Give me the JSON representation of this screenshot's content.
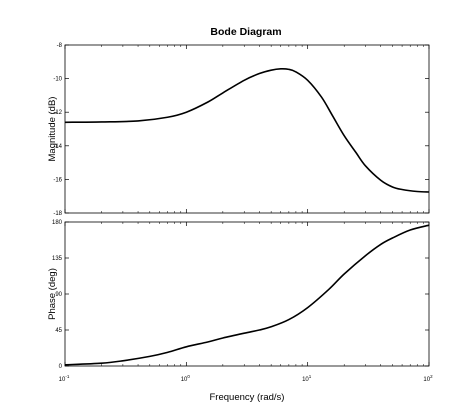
{
  "chart_data": [
    {
      "type": "line",
      "panel": "magnitude",
      "title": "Bode Diagram",
      "xlabel": "Frequency  (rad/s)",
      "ylabel": "Magnitude (dB)",
      "xscale": "log",
      "xlim": [
        0.1,
        100
      ],
      "ylim": [
        -18,
        -8
      ],
      "yticks": [
        -18,
        -16,
        -14,
        -12,
        -10,
        -8
      ],
      "ytick_labels": [
        "-18",
        "-16",
        "-14",
        "-12",
        "-10",
        "-8"
      ],
      "grid": false,
      "line_color": "#000000",
      "series": [
        {
          "x": [
            0.1,
            0.2,
            0.4,
            0.7,
            1.0,
            1.5,
            2.0,
            3.0,
            4.0,
            5.0,
            6.0,
            7.0,
            8.0,
            10,
            13,
            16,
            20,
            25,
            30,
            40,
            50,
            60,
            80,
            100
          ],
          "values": [
            -12.6,
            -12.58,
            -12.52,
            -12.3,
            -12.0,
            -11.4,
            -10.85,
            -10.1,
            -9.7,
            -9.5,
            -9.42,
            -9.45,
            -9.6,
            -10.1,
            -11.1,
            -12.2,
            -13.4,
            -14.4,
            -15.2,
            -16.05,
            -16.45,
            -16.6,
            -16.72,
            -16.75
          ]
        }
      ]
    },
    {
      "type": "line",
      "panel": "phase",
      "xlabel": "Frequency  (rad/s)",
      "ylabel": "Phase (deg)",
      "xscale": "log",
      "xlim": [
        0.1,
        100
      ],
      "ylim": [
        0,
        180
      ],
      "yticks": [
        0,
        45,
        90,
        135,
        180
      ],
      "ytick_labels": [
        "0",
        "45",
        "90",
        "135",
        "180"
      ],
      "xticks": [
        0.1,
        1,
        10,
        100
      ],
      "xtick_labels": [
        "10",
        "10",
        "10",
        "10"
      ],
      "xtick_exponents": [
        "-1",
        "0",
        "1",
        "2"
      ],
      "grid": false,
      "line_color": "#000000",
      "series": [
        {
          "x": [
            0.1,
            0.2,
            0.3,
            0.5,
            0.7,
            1.0,
            1.5,
            2.0,
            3.0,
            4.0,
            5.0,
            7.0,
            10,
            15,
            20,
            30,
            40,
            50,
            70,
            100
          ],
          "values": [
            1.5,
            3.5,
            6.5,
            12,
            17,
            24,
            30,
            35,
            41,
            45,
            49,
            58,
            73,
            96,
            115,
            138,
            152,
            160,
            170,
            176
          ]
        }
      ]
    }
  ]
}
